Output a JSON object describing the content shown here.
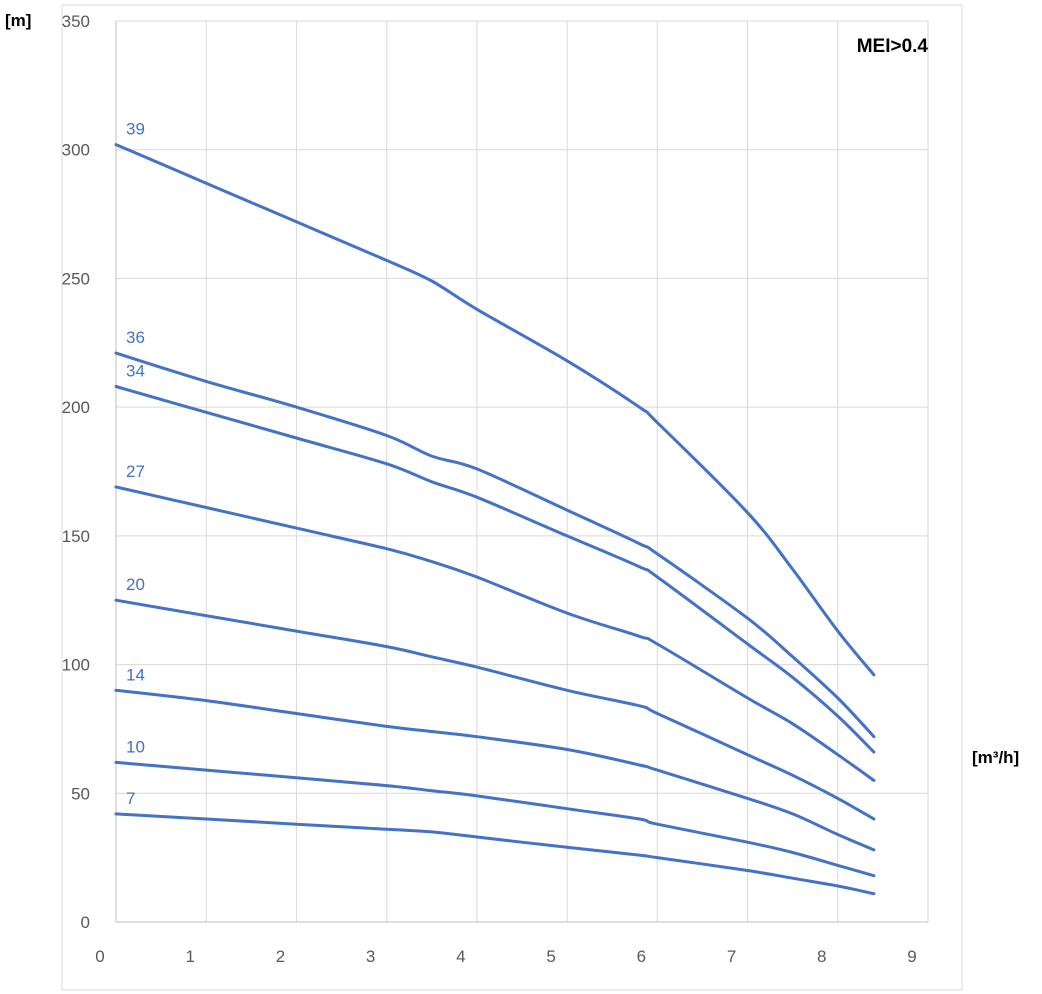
{
  "chart_data": {
    "type": "line",
    "title": "",
    "xlabel": "[m³/h]",
    "ylabel": "[m]",
    "annotation": "MEI>0.4",
    "xlim": [
      0,
      9
    ],
    "ylim": [
      0,
      350
    ],
    "xticks": [
      0,
      1,
      2,
      3,
      4,
      5,
      6,
      7,
      8,
      9
    ],
    "yticks": [
      0,
      50,
      100,
      150,
      200,
      250,
      300,
      350
    ],
    "grid": true,
    "line_color": "#4472C4",
    "grid_color": "#d9d9d9",
    "series": [
      {
        "name": "39",
        "x": [
          0,
          1,
          2,
          3,
          3.5,
          4,
          5,
          5.8,
          6,
          7,
          7.5,
          8,
          8.4
        ],
        "y": [
          302,
          287,
          272,
          257,
          249,
          238,
          218,
          200,
          194,
          159,
          137,
          113,
          96
        ]
      },
      {
        "name": "36",
        "x": [
          0,
          1,
          2,
          3,
          3.5,
          4,
          5,
          5.8,
          6,
          7,
          7.5,
          8,
          8.4
        ],
        "y": [
          221,
          210,
          200,
          189,
          181,
          176,
          160,
          147,
          143,
          118,
          103,
          87,
          72
        ]
      },
      {
        "name": "34",
        "x": [
          0,
          1,
          2,
          3,
          3.5,
          4,
          5,
          5.8,
          6,
          7,
          7.5,
          8,
          8.4
        ],
        "y": [
          208,
          198,
          188,
          178,
          171,
          165,
          150,
          138,
          134,
          108,
          95,
          80,
          66
        ]
      },
      {
        "name": "27",
        "x": [
          0,
          1,
          2,
          3,
          3.5,
          4,
          5,
          5.8,
          6,
          7,
          7.5,
          8,
          8.4
        ],
        "y": [
          169,
          161,
          153,
          145,
          140,
          134,
          120,
          111,
          108,
          87,
          77,
          65,
          55
        ]
      },
      {
        "name": "20",
        "x": [
          0,
          1,
          2,
          3,
          3.5,
          4,
          5,
          5.8,
          6,
          7,
          7.5,
          8,
          8.4
        ],
        "y": [
          125,
          119,
          113,
          107,
          103,
          99,
          90,
          84,
          81,
          65,
          57,
          48,
          40
        ]
      },
      {
        "name": "14",
        "x": [
          0,
          1,
          2,
          3,
          3.5,
          4,
          5,
          5.8,
          6,
          7,
          7.5,
          8,
          8.4
        ],
        "y": [
          90,
          86,
          81,
          76,
          74,
          72,
          67,
          61,
          59,
          48,
          42,
          34,
          28
        ]
      },
      {
        "name": "10",
        "x": [
          0,
          1,
          2,
          3,
          3.5,
          4,
          5,
          5.8,
          6,
          7,
          7.5,
          8,
          8.4
        ],
        "y": [
          62,
          59,
          56,
          53,
          51,
          49,
          44,
          40,
          38,
          31,
          27,
          22,
          18
        ]
      },
      {
        "name": "7",
        "x": [
          0,
          1,
          2,
          3,
          3.5,
          4,
          5,
          5.8,
          6,
          7,
          7.5,
          8,
          8.4
        ],
        "y": [
          42,
          40,
          38,
          36,
          35,
          33,
          29,
          26,
          25,
          20,
          17,
          14,
          11
        ]
      }
    ]
  }
}
